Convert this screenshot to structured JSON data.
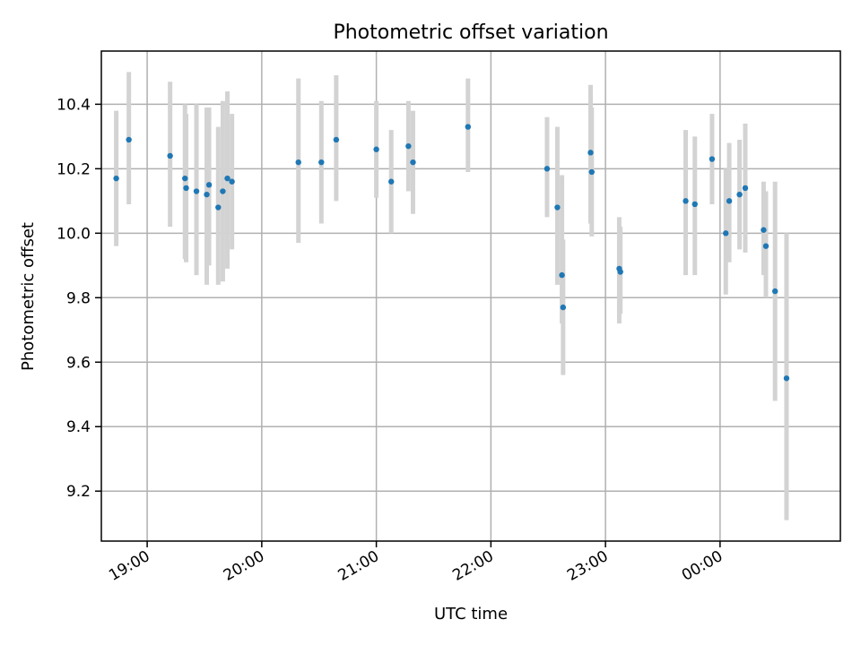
{
  "chart_data": {
    "type": "scatter",
    "title": "Photometric offset variation",
    "xlabel": "UTC time",
    "ylabel": "Photometric offset",
    "x_unit": "hours UTC (values past 24 are after midnight)",
    "xlim": [
      18.6,
      25.05
    ],
    "ylim": [
      9.045,
      10.565
    ],
    "x_ticks": [
      {
        "value": 19,
        "label": "19:00"
      },
      {
        "value": 20,
        "label": "20:00"
      },
      {
        "value": 21,
        "label": "21:00"
      },
      {
        "value": 22,
        "label": "22:00"
      },
      {
        "value": 23,
        "label": "23:00"
      },
      {
        "value": 24,
        "label": "00:00"
      }
    ],
    "y_ticks": [
      9.2,
      9.4,
      9.6,
      9.8,
      10.0,
      10.2,
      10.4
    ],
    "grid": true,
    "colors": {
      "point": "#1f77b4",
      "errorbar": "#d3d3d3",
      "grid": "#b0b0b0"
    },
    "series": [
      {
        "points": [
          {
            "x": 18.73,
            "y": 10.17,
            "lo": 9.96,
            "hi": 10.38
          },
          {
            "x": 18.84,
            "y": 10.29,
            "lo": 10.09,
            "hi": 10.5
          },
          {
            "x": 19.2,
            "y": 10.24,
            "lo": 10.02,
            "hi": 10.47
          },
          {
            "x": 19.33,
            "y": 10.17,
            "lo": 9.92,
            "hi": 10.4
          },
          {
            "x": 19.34,
            "y": 10.14,
            "lo": 9.91,
            "hi": 10.37
          },
          {
            "x": 19.43,
            "y": 10.13,
            "lo": 9.87,
            "hi": 10.4
          },
          {
            "x": 19.52,
            "y": 10.12,
            "lo": 9.84,
            "hi": 10.39
          },
          {
            "x": 19.54,
            "y": 10.15,
            "lo": 9.9,
            "hi": 10.39
          },
          {
            "x": 19.62,
            "y": 10.08,
            "lo": 9.84,
            "hi": 10.33
          },
          {
            "x": 19.66,
            "y": 10.13,
            "lo": 9.85,
            "hi": 10.41
          },
          {
            "x": 19.7,
            "y": 10.17,
            "lo": 9.89,
            "hi": 10.44
          },
          {
            "x": 19.74,
            "y": 10.16,
            "lo": 9.95,
            "hi": 10.37
          },
          {
            "x": 20.32,
            "y": 10.22,
            "lo": 9.97,
            "hi": 10.48
          },
          {
            "x": 20.52,
            "y": 10.22,
            "lo": 10.03,
            "hi": 10.41
          },
          {
            "x": 20.65,
            "y": 10.29,
            "lo": 10.1,
            "hi": 10.49
          },
          {
            "x": 21.0,
            "y": 10.26,
            "lo": 10.11,
            "hi": 10.41
          },
          {
            "x": 21.13,
            "y": 10.16,
            "lo": 10.0,
            "hi": 10.32
          },
          {
            "x": 21.28,
            "y": 10.27,
            "lo": 10.13,
            "hi": 10.41
          },
          {
            "x": 21.32,
            "y": 10.22,
            "lo": 10.06,
            "hi": 10.38
          },
          {
            "x": 21.8,
            "y": 10.33,
            "lo": 10.19,
            "hi": 10.48
          },
          {
            "x": 22.49,
            "y": 10.2,
            "lo": 10.05,
            "hi": 10.36
          },
          {
            "x": 22.58,
            "y": 10.08,
            "lo": 9.84,
            "hi": 10.33
          },
          {
            "x": 22.62,
            "y": 9.87,
            "lo": 9.72,
            "hi": 10.18
          },
          {
            "x": 22.63,
            "y": 9.77,
            "lo": 9.56,
            "hi": 9.98
          },
          {
            "x": 22.87,
            "y": 10.25,
            "lo": 10.03,
            "hi": 10.46
          },
          {
            "x": 22.88,
            "y": 10.19,
            "lo": 9.99,
            "hi": 10.39
          },
          {
            "x": 23.12,
            "y": 9.89,
            "lo": 9.72,
            "hi": 10.05
          },
          {
            "x": 23.13,
            "y": 9.88,
            "lo": 9.75,
            "hi": 10.02
          },
          {
            "x": 23.7,
            "y": 10.1,
            "lo": 9.87,
            "hi": 10.32
          },
          {
            "x": 23.78,
            "y": 10.09,
            "lo": 9.87,
            "hi": 10.3
          },
          {
            "x": 23.93,
            "y": 10.23,
            "lo": 10.09,
            "hi": 10.37
          },
          {
            "x": 24.05,
            "y": 10.0,
            "lo": 9.81,
            "hi": 10.2
          },
          {
            "x": 24.08,
            "y": 10.1,
            "lo": 9.91,
            "hi": 10.28
          },
          {
            "x": 24.17,
            "y": 10.12,
            "lo": 9.95,
            "hi": 10.29
          },
          {
            "x": 24.22,
            "y": 10.14,
            "lo": 9.94,
            "hi": 10.34
          },
          {
            "x": 24.38,
            "y": 10.01,
            "lo": 9.87,
            "hi": 10.16
          },
          {
            "x": 24.4,
            "y": 9.96,
            "lo": 9.8,
            "hi": 10.13
          },
          {
            "x": 24.48,
            "y": 9.82,
            "lo": 9.48,
            "hi": 10.16
          },
          {
            "x": 24.58,
            "y": 9.55,
            "lo": 9.11,
            "hi": 10.0
          }
        ]
      }
    ]
  }
}
